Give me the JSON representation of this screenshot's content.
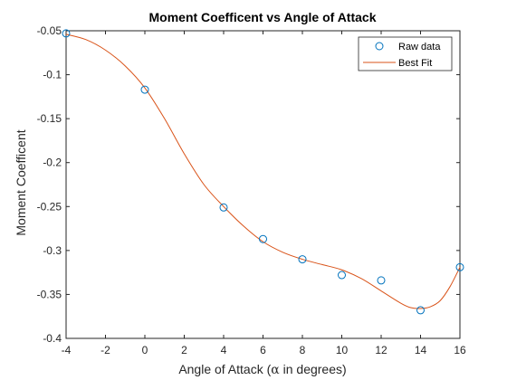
{
  "chart_data": {
    "type": "scatter",
    "title": "Moment Coefficent vs Angle of Attack",
    "xlabel_prefix": "Angle of Attack (",
    "xlabel_symbol": "α",
    "xlabel_suffix": " in degrees)",
    "ylabel": "Moment Coefficent",
    "xlim": [
      -4,
      16
    ],
    "ylim": [
      -0.4,
      -0.05
    ],
    "xticks": [
      -4,
      -2,
      0,
      2,
      4,
      6,
      8,
      10,
      12,
      14,
      16
    ],
    "xtick_labels": [
      "-4",
      "-2",
      "0",
      "2",
      "4",
      "6",
      "8",
      "10",
      "12",
      "14",
      "16"
    ],
    "yticks": [
      -0.05,
      -0.1,
      -0.15,
      -0.2,
      -0.25,
      -0.3,
      -0.35,
      -0.4
    ],
    "ytick_labels": [
      "-0.05",
      "-0.1",
      "-0.15",
      "-0.2",
      "-0.25",
      "-0.3",
      "-0.35",
      "-0.4"
    ],
    "grid": false,
    "legend_position": "top-right",
    "colors": {
      "raw": "#0072BD",
      "fit": "#D95319",
      "axis": "#262626"
    },
    "series": [
      {
        "name": "Raw data",
        "mode": "markers",
        "x": [
          -4,
          0,
          4,
          6,
          8,
          10,
          12,
          14,
          16
        ],
        "y": [
          -0.053,
          -0.117,
          -0.251,
          -0.287,
          -0.31,
          -0.328,
          -0.334,
          -0.368,
          -0.319
        ]
      },
      {
        "name": "Best Fit",
        "mode": "line",
        "x": [
          -4,
          -3,
          -2,
          -1,
          0,
          1,
          2,
          3,
          4,
          5,
          6,
          7,
          8,
          9,
          10,
          11,
          12,
          13,
          13.5,
          14,
          14.5,
          15,
          15.5,
          16
        ],
        "y": [
          -0.054,
          -0.06,
          -0.072,
          -0.09,
          -0.115,
          -0.15,
          -0.19,
          -0.225,
          -0.25,
          -0.272,
          -0.29,
          -0.302,
          -0.31,
          -0.316,
          -0.322,
          -0.332,
          -0.346,
          -0.36,
          -0.365,
          -0.366,
          -0.364,
          -0.357,
          -0.341,
          -0.319
        ]
      }
    ]
  }
}
